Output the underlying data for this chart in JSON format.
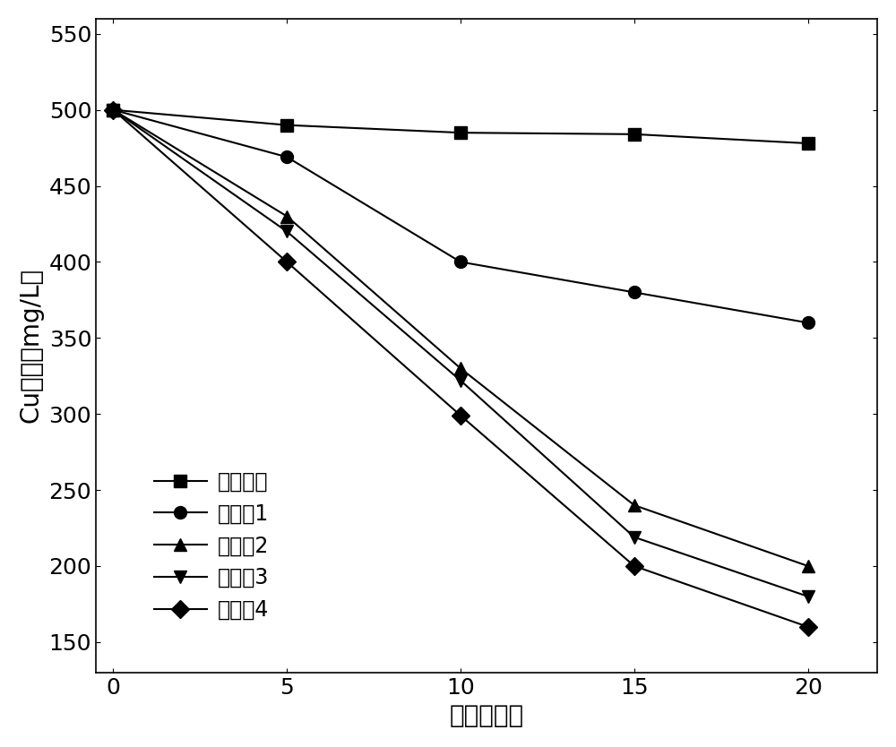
{
  "title": "",
  "xlabel": "时间（天）",
  "ylabel": "Cu浓度（mg/L）",
  "xlim": [
    -0.5,
    22
  ],
  "ylim": [
    130,
    560
  ],
  "yticks": [
    150,
    200,
    250,
    300,
    350,
    400,
    450,
    500,
    550
  ],
  "xticks": [
    0,
    5,
    10,
    15,
    20
  ],
  "series": [
    {
      "label": "基质沥青",
      "x": [
        0,
        5,
        10,
        15,
        20
      ],
      "y": [
        500,
        490,
        485,
        484,
        478
      ],
      "marker": "s",
      "color": "#000000"
    },
    {
      "label": "实施例1",
      "x": [
        0,
        5,
        10,
        15,
        20
      ],
      "y": [
        500,
        469,
        400,
        380,
        360
      ],
      "marker": "o",
      "color": "#000000"
    },
    {
      "label": "实施例2",
      "x": [
        0,
        5,
        10,
        15,
        20
      ],
      "y": [
        500,
        430,
        330,
        240,
        200
      ],
      "marker": "^",
      "color": "#000000"
    },
    {
      "label": "实施例3",
      "x": [
        0,
        5,
        10,
        15,
        20
      ],
      "y": [
        500,
        420,
        322,
        219,
        180
      ],
      "marker": "v",
      "color": "#000000"
    },
    {
      "label": "实施例4",
      "x": [
        0,
        5,
        10,
        15,
        20
      ],
      "y": [
        500,
        400,
        299,
        200,
        160
      ],
      "marker": "D",
      "color": "#000000"
    }
  ],
  "legend_loc": "lower left",
  "background_color": "#ffffff",
  "label_font_size": 20,
  "tick_font_size": 18,
  "legend_font_size": 17,
  "marker_size": 10,
  "line_width": 1.5
}
